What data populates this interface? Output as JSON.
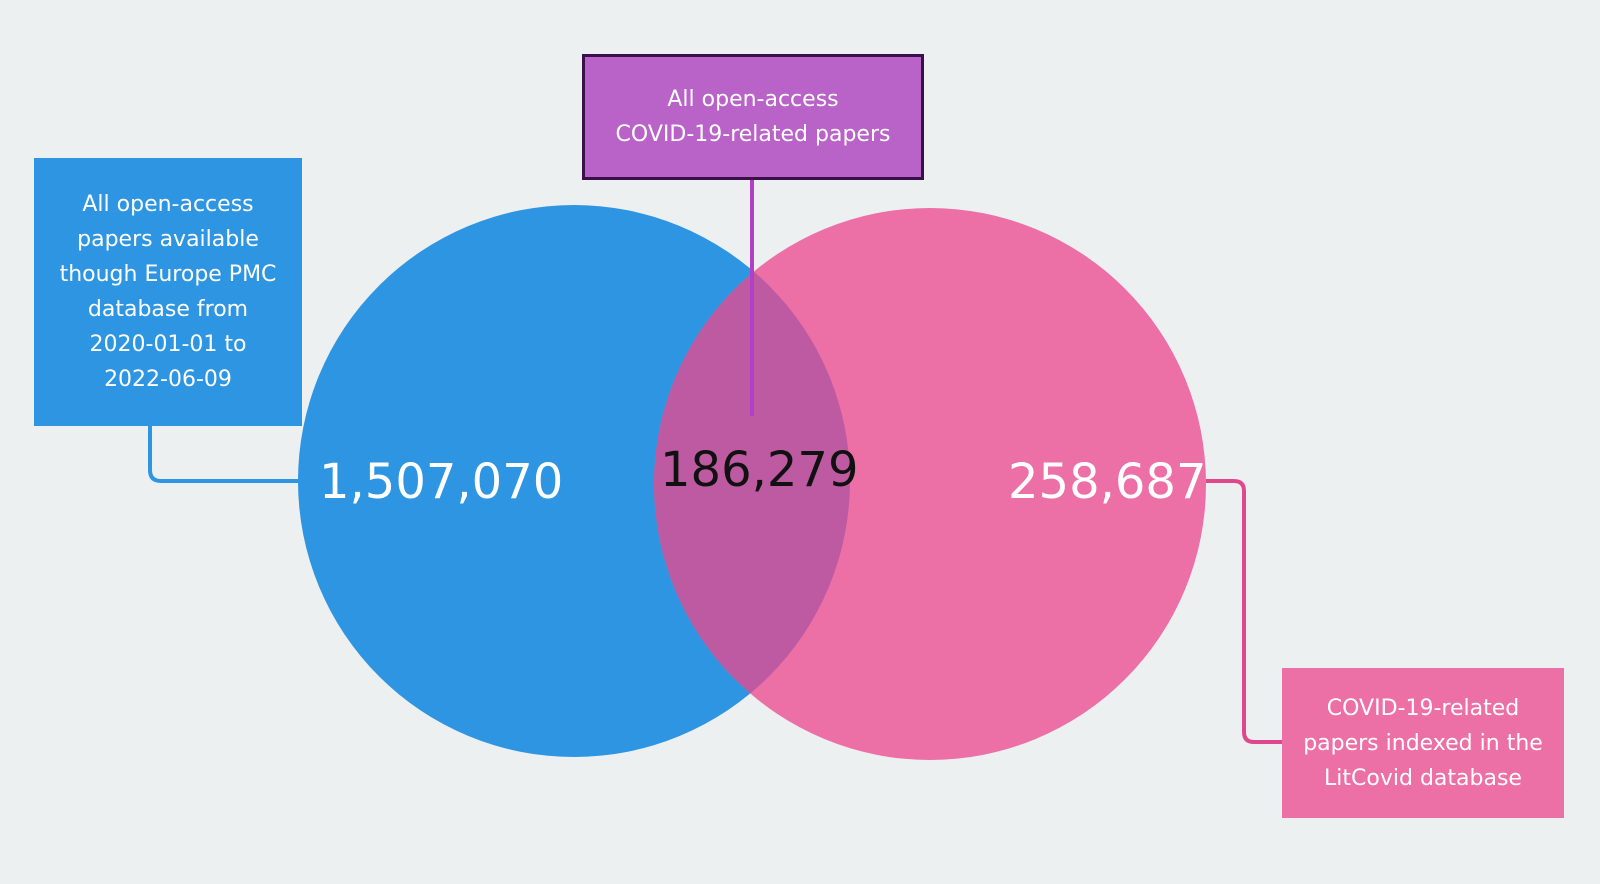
{
  "diagram": {
    "type": "venn",
    "colors": {
      "background": "#edf0f1",
      "left_circle": "#2d95e2",
      "right_circle": "#ec6fa6",
      "overlap": "#bd5aa1",
      "top_label": "#b962c8",
      "top_label_border": "#3b0f4a",
      "connector_left": "#2d95e2",
      "connector_top": "#b33fc7",
      "connector_right": "#e0488e"
    },
    "left": {
      "label": "All open-access\npapers available\nthough Europe PMC\ndatabase from\n2020-01-01 to\n2022-06-09",
      "count": "1,507,070"
    },
    "intersection": {
      "label": "All open-access\nCOVID-19-related papers",
      "count": "186,279"
    },
    "right": {
      "label": "COVID-19-related\npapers indexed in the\nLitCovid database",
      "count": "258,687"
    }
  }
}
